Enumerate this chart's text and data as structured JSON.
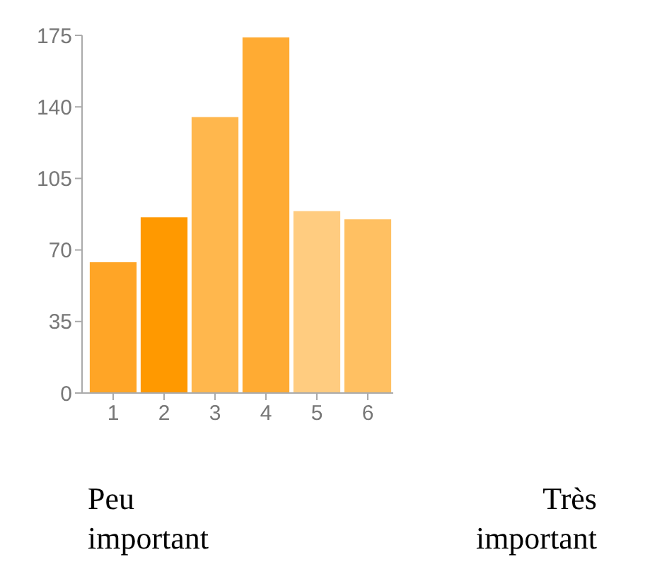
{
  "chart_data": {
    "type": "bar",
    "categories": [
      "1",
      "2",
      "3",
      "4",
      "5",
      "6"
    ],
    "values": [
      64,
      86,
      135,
      174,
      89,
      85
    ],
    "colors": [
      "#ffa526",
      "#ff9900",
      "#ffb74d",
      "#ffab33",
      "#ffcc80",
      "#ffc062"
    ],
    "ylim": [
      0,
      175
    ],
    "yticks": [
      0,
      35,
      70,
      105,
      140,
      175
    ],
    "annotations": [
      "Peu important",
      "Très important"
    ]
  }
}
